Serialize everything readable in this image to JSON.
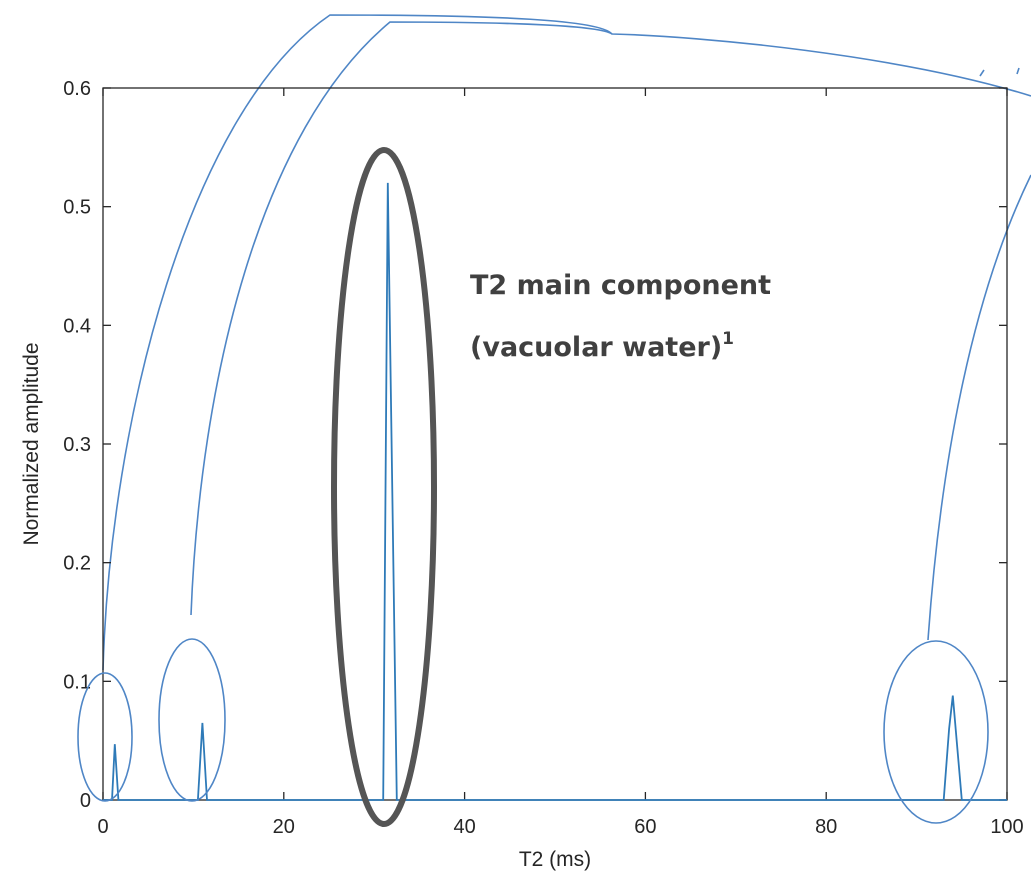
{
  "chart_data": {
    "type": "line",
    "title": "",
    "xlabel": "T2 (ms)",
    "ylabel": "Normalized amplitude",
    "xlim": [
      0,
      100
    ],
    "ylim": [
      0,
      0.6
    ],
    "xticks": [
      0,
      20,
      40,
      60,
      80,
      100
    ],
    "xtick_labels": [
      "0",
      "20",
      "40",
      "60",
      "80",
      "100"
    ],
    "yticks": [
      0,
      0.1,
      0.2,
      0.3,
      0.4,
      0.5,
      0.6
    ],
    "ytick_labels": [
      "0",
      "0.1",
      "0.2",
      "0.3",
      "0.4",
      "0.5",
      "0.6"
    ],
    "grid": false,
    "line_color": "#2e7ab8",
    "series": [
      {
        "x": [
          0,
          1.0,
          1.3,
          1.7,
          10.5,
          11.0,
          11.5,
          31.0,
          31.5,
          32.5,
          93.0,
          93.6,
          94.0,
          95.0,
          100
        ],
        "y": [
          0,
          0,
          0.047,
          0,
          0,
          0.065,
          0,
          0,
          0.52,
          0,
          0,
          0.06,
          0.088,
          0,
          0
        ]
      }
    ],
    "annotations": [
      {
        "text": "T2 main component",
        "x": 40,
        "y": 0.43
      },
      {
        "text": "(vacuolar water)",
        "sup": "1",
        "x": 40,
        "y": 0.38
      }
    ],
    "ellipse_color": "#555555",
    "connector_color": "#4f86c6"
  }
}
